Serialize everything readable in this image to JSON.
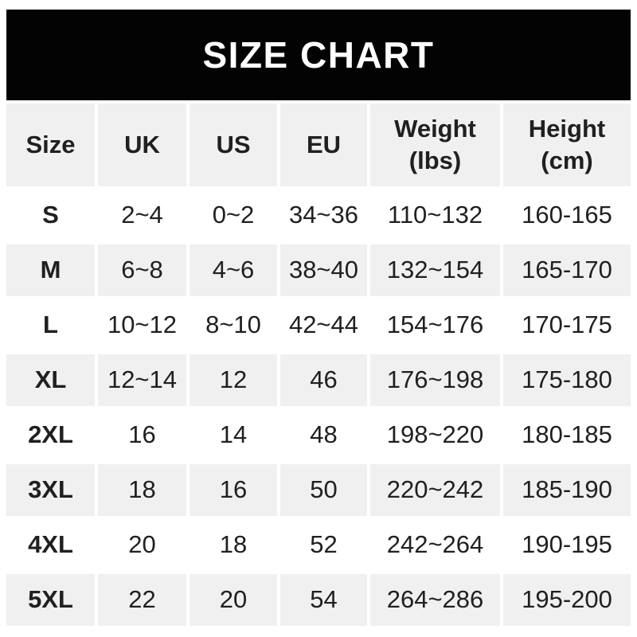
{
  "title": "SIZE CHART",
  "colors": {
    "banner_bg": "#030303",
    "banner_text": "#ffffff",
    "row_alt_bg": "#f0f0f0",
    "row_bg": "#ffffff",
    "text": "#202020"
  },
  "table": {
    "columns": [
      {
        "line1": "Size",
        "line2": ""
      },
      {
        "line1": "UK",
        "line2": ""
      },
      {
        "line1": "US",
        "line2": ""
      },
      {
        "line1": "EU",
        "line2": ""
      },
      {
        "line1": "Weight",
        "line2": "(lbs)"
      },
      {
        "line1": "Height",
        "line2": "(cm)"
      }
    ],
    "rows": [
      {
        "size": "S",
        "uk": "2~4",
        "us": "0~2",
        "eu": "34~36",
        "weight": "110~132",
        "height": "160-165"
      },
      {
        "size": "M",
        "uk": "6~8",
        "us": "4~6",
        "eu": "38~40",
        "weight": "132~154",
        "height": "165-170"
      },
      {
        "size": "L",
        "uk": "10~12",
        "us": "8~10",
        "eu": "42~44",
        "weight": "154~176",
        "height": "170-175"
      },
      {
        "size": "XL",
        "uk": "12~14",
        "us": "12",
        "eu": "46",
        "weight": "176~198",
        "height": "175-180"
      },
      {
        "size": "2XL",
        "uk": "16",
        "us": "14",
        "eu": "48",
        "weight": "198~220",
        "height": "180-185"
      },
      {
        "size": "3XL",
        "uk": "18",
        "us": "16",
        "eu": "50",
        "weight": "220~242",
        "height": "185-190"
      },
      {
        "size": "4XL",
        "uk": "20",
        "us": "18",
        "eu": "52",
        "weight": "242~264",
        "height": "190-195"
      },
      {
        "size": "5XL",
        "uk": "22",
        "us": "20",
        "eu": "54",
        "weight": "264~286",
        "height": "195-200"
      }
    ]
  },
  "chart_data": {
    "type": "table",
    "title": "SIZE CHART",
    "columns": [
      "Size",
      "UK",
      "US",
      "EU",
      "Weight (lbs)",
      "Height (cm)"
    ],
    "rows": [
      [
        "S",
        "2~4",
        "0~2",
        "34~36",
        "110~132",
        "160-165"
      ],
      [
        "M",
        "6~8",
        "4~6",
        "38~40",
        "132~154",
        "165-170"
      ],
      [
        "L",
        "10~12",
        "8~10",
        "42~44",
        "154~176",
        "170-175"
      ],
      [
        "XL",
        "12~14",
        "12",
        "46",
        "176~198",
        "175-180"
      ],
      [
        "2XL",
        "16",
        "14",
        "48",
        "198~220",
        "180-185"
      ],
      [
        "3XL",
        "18",
        "16",
        "50",
        "220~242",
        "185-190"
      ],
      [
        "4XL",
        "20",
        "18",
        "52",
        "242~264",
        "190-195"
      ],
      [
        "5XL",
        "22",
        "20",
        "54",
        "264~286",
        "195-200"
      ]
    ],
    "layout_hints": {
      "banner": "black full-width header bar with white bold title",
      "alternating_row_shading": [
        "white",
        "light-gray"
      ],
      "column_gutters": "4px white gaps",
      "wide_columns": [
        "Weight (lbs)",
        "Height (cm)"
      ]
    }
  }
}
